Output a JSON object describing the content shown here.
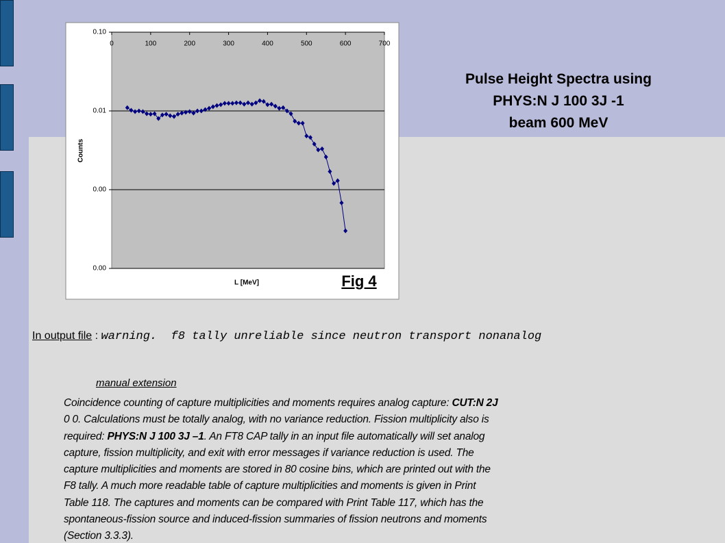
{
  "chart_data": {
    "type": "line",
    "x_label": "L [MeV]",
    "y_label": "Counts",
    "figure_label": "Fig 4",
    "x": [
      40,
      50,
      60,
      70,
      80,
      90,
      100,
      110,
      120,
      130,
      140,
      150,
      160,
      170,
      180,
      190,
      200,
      210,
      220,
      230,
      240,
      250,
      260,
      270,
      280,
      290,
      300,
      310,
      320,
      330,
      340,
      350,
      360,
      370,
      380,
      390,
      400,
      410,
      420,
      430,
      440,
      450,
      460,
      470,
      480,
      490,
      500,
      510,
      520,
      530,
      540,
      550,
      560,
      570,
      580,
      590,
      600
    ],
    "series": [
      {
        "name": "Counts",
        "color": "#000080",
        "values": [
          0.011,
          0.0102,
          0.0098,
          0.01,
          0.0098,
          0.0092,
          0.0091,
          0.0092,
          0.008,
          0.0089,
          0.0091,
          0.0087,
          0.0085,
          0.0091,
          0.0094,
          0.0096,
          0.0098,
          0.0094,
          0.01,
          0.01,
          0.0104,
          0.0108,
          0.0113,
          0.0117,
          0.012,
          0.0125,
          0.0125,
          0.0125,
          0.0127,
          0.0127,
          0.0122,
          0.0127,
          0.0122,
          0.0127,
          0.0135,
          0.0132,
          0.012,
          0.0122,
          0.0115,
          0.0108,
          0.011,
          0.01,
          0.0092,
          0.0074,
          0.007,
          0.007,
          0.0048,
          0.0046,
          0.0038,
          0.0032,
          0.0033,
          0.0026,
          0.0017,
          0.0012,
          0.0013,
          0.00068,
          0.0003
        ]
      }
    ],
    "xlim": [
      0,
      700
    ],
    "xticks": [
      0,
      100,
      200,
      300,
      400,
      500,
      600,
      700
    ],
    "ylim": [
      0.0001,
      0.1
    ],
    "log_y": true,
    "yticks": [
      {
        "value": 0.1,
        "label": "0.10"
      },
      {
        "value": 0.01,
        "label": "0.01"
      },
      {
        "value": 0.001,
        "label": "0.00"
      },
      {
        "value": 0.0001,
        "label": "0.00"
      }
    ],
    "grid": true
  },
  "slide": {
    "title_lines": [
      "Pulse Height Spectra using",
      "PHYS:N J 100 3J -1",
      "beam 600 MeV"
    ],
    "output_label": "In output file",
    "output_sep": " : ",
    "output_message": "warning.  f8 tally unreliable since neutron transport nonanalog",
    "manual_heading": "manual extension",
    "paragraph_lines": [
      [
        {
          "text": "Coincidence counting of capture multiplicities and moments requires analog capture: "
        },
        {
          "text": "CUT:N 2J",
          "bold": true
        }
      ],
      [
        {
          "text": "0 0. Calculations must be totally analog, with no variance reduction. Fission multiplicity also is"
        }
      ],
      [
        {
          "text": "required: "
        },
        {
          "text": "PHYS:N J 100 3J –1",
          "bold": true
        },
        {
          "text": ". An FT8 CAP tally in an input file automatically will set analog"
        }
      ],
      [
        {
          "text": "capture, fission multiplicity, and exit with error messages if variance reduction is used. The"
        }
      ],
      [
        {
          "text": "capture multiplicities and moments are stored in 80 cosine bins, which are printed out with the"
        }
      ],
      [
        {
          "text": "F8 tally. A much more readable table of capture multiplicities and moments is given in Print"
        }
      ],
      [
        {
          "text": "Table 118. The captures and moments can be compared with Print Table 117, which has the"
        }
      ],
      [
        {
          "text": "spontaneous-fission source and induced-fission summaries of fission neutrons and moments"
        }
      ],
      [
        {
          "text": "(Section 3.3.3)."
        }
      ]
    ]
  }
}
